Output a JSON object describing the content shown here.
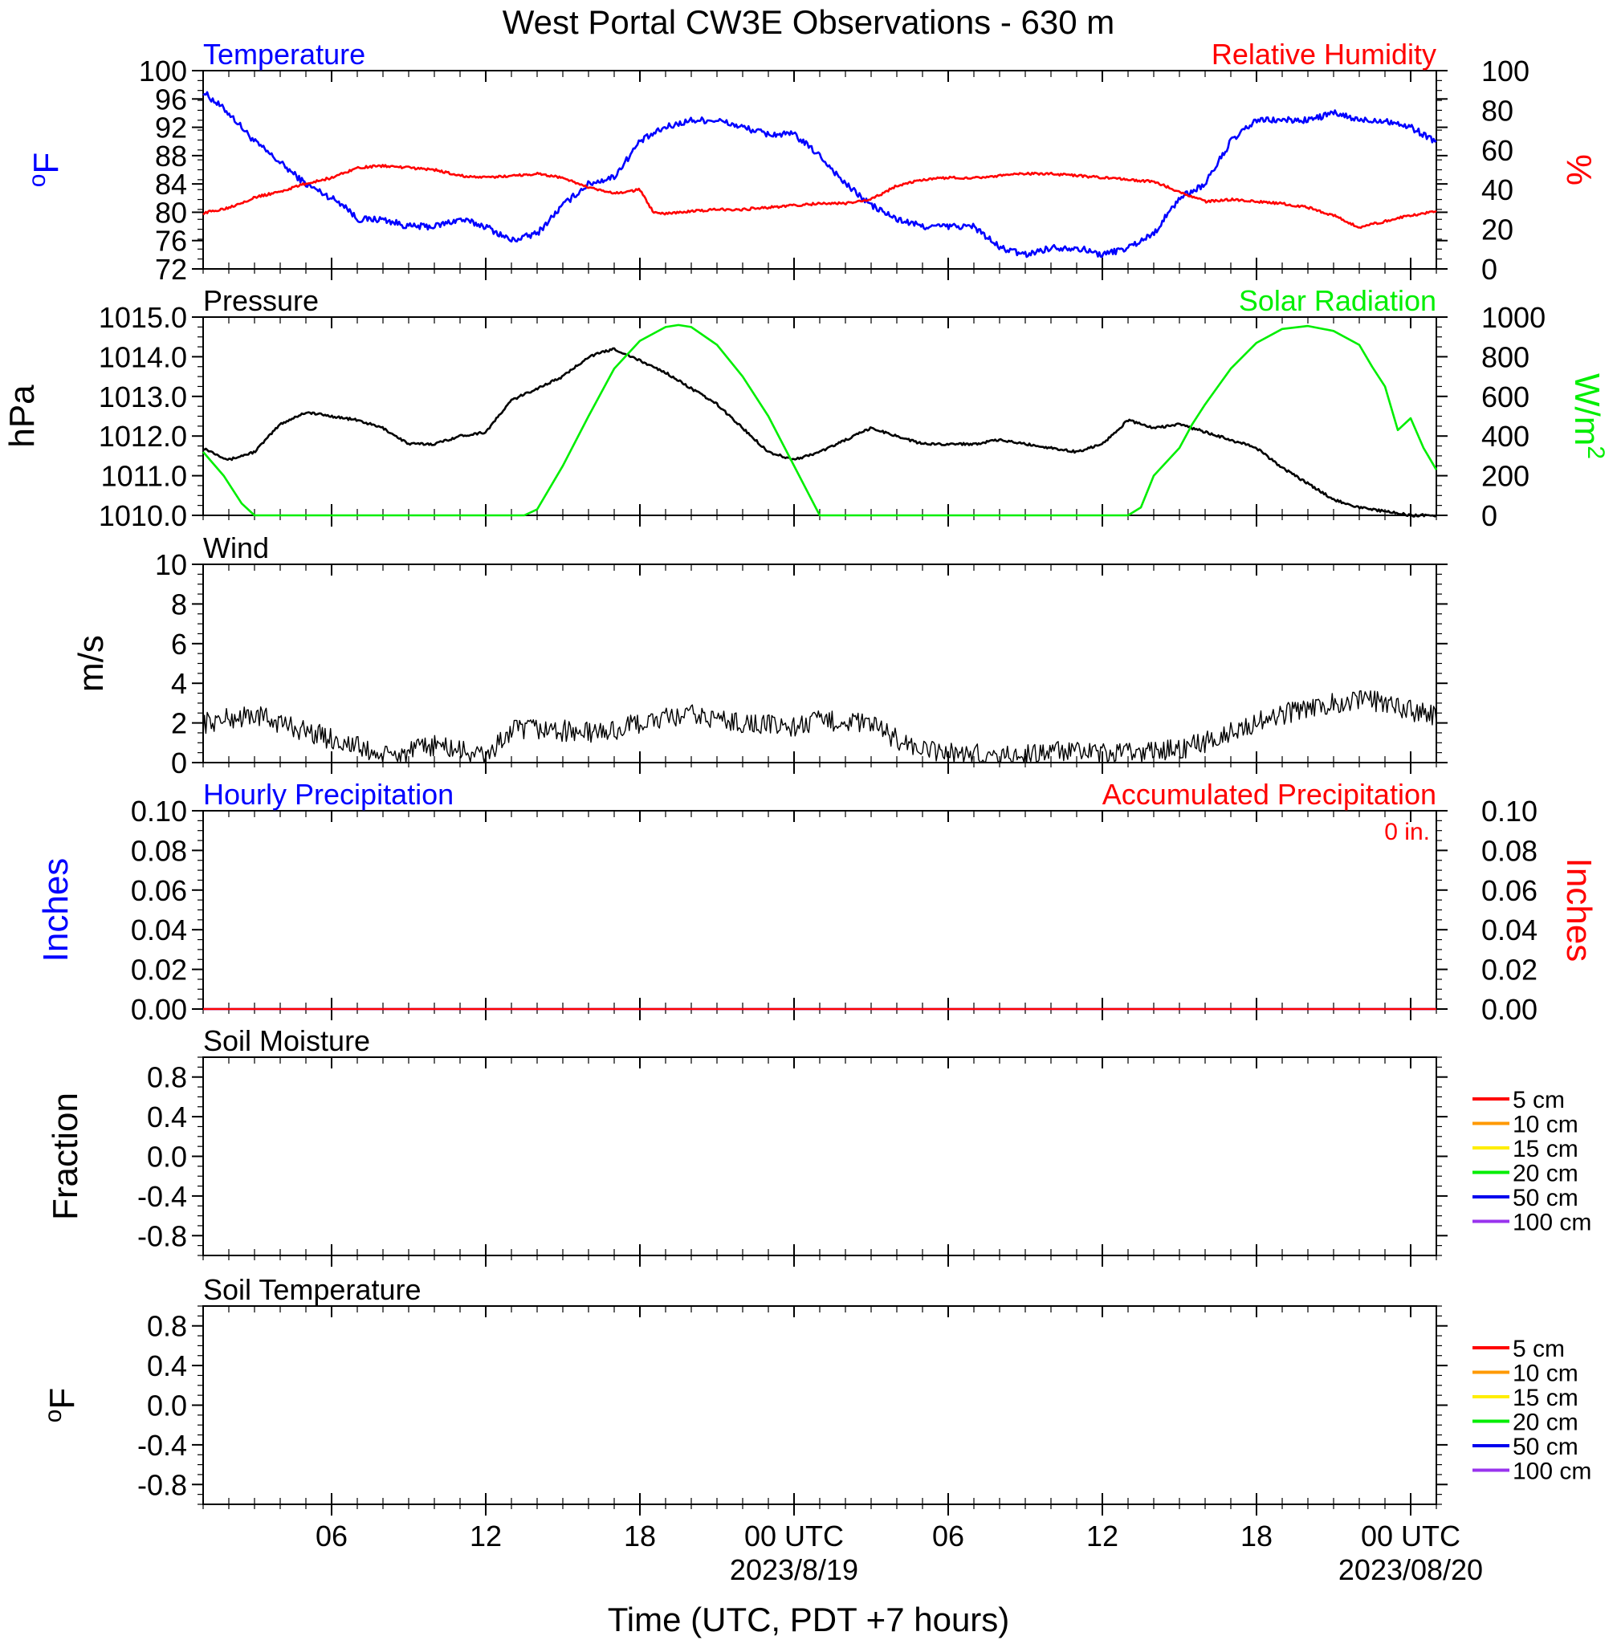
{
  "title": "West Portal CW3E Observations - 630 m",
  "xlabel": "Time (UTC, PDT +7 hours)",
  "colors": {
    "blue": "#0000ff",
    "red": "#ff0000",
    "green": "#00ee00",
    "black": "#000000"
  },
  "x_axis": {
    "unit": "hours from 2023-08-18 01 UTC",
    "range": [
      0,
      48
    ],
    "ticks": [
      {
        "x": 5,
        "label": "06",
        "date": ""
      },
      {
        "x": 11,
        "label": "12",
        "date": ""
      },
      {
        "x": 17,
        "label": "18",
        "date": ""
      },
      {
        "x": 23,
        "label": "00 UTC",
        "date": "2023/8/19"
      },
      {
        "x": 29,
        "label": "06",
        "date": ""
      },
      {
        "x": 35,
        "label": "12",
        "date": ""
      },
      {
        "x": 41,
        "label": "18",
        "date": ""
      },
      {
        "x": 47,
        "label": "00 UTC",
        "date": "2023/08/20"
      }
    ]
  },
  "chart_data": [
    {
      "type": "line",
      "left_title": "Temperature",
      "right_title": "Relative Humidity",
      "ylabel": "oF",
      "y2label": "%",
      "ylim": [
        72,
        100
      ],
      "y2lim": [
        0,
        100
      ],
      "yticks": [
        "100",
        "96",
        "92",
        "88",
        "84",
        "80",
        "76",
        "72"
      ],
      "y2ticks": [
        "100",
        "80",
        "60",
        "40",
        "20",
        "0"
      ],
      "series": [
        {
          "name": "Temperature",
          "color": "#0000ff",
          "axis": "left",
          "x": [
            0,
            1,
            2,
            3,
            4,
            5,
            5.5,
            6,
            7,
            8,
            9,
            10,
            11,
            12,
            13,
            14,
            15,
            16,
            17,
            18,
            19,
            20,
            21,
            22,
            23,
            24,
            25,
            26,
            27,
            28,
            29,
            30,
            31,
            32,
            33,
            34,
            35,
            36,
            37,
            38,
            39,
            40,
            41,
            42,
            43,
            44,
            45,
            46,
            47,
            48
          ],
          "y": [
            97,
            94,
            90,
            87,
            84,
            82,
            81,
            79,
            79,
            78,
            78,
            79,
            78,
            76,
            77,
            81,
            84,
            85,
            90,
            92,
            93,
            93,
            92,
            91,
            91,
            88,
            84,
            81,
            79,
            78,
            78,
            78,
            75,
            74,
            75,
            75,
            74,
            75,
            77,
            82,
            84,
            90,
            93,
            93,
            93,
            94,
            93,
            93,
            92,
            90
          ]
        },
        {
          "name": "Relative Humidity",
          "color": "#ff0000",
          "axis": "right",
          "x": [
            0,
            1,
            2,
            3,
            4,
            5,
            6,
            7,
            8,
            9,
            10,
            11,
            12,
            13,
            14,
            15,
            16,
            17,
            17.5,
            18,
            19,
            20,
            21,
            22,
            23,
            24,
            25,
            26,
            27,
            28,
            29,
            30,
            31,
            32,
            33,
            34,
            35,
            36,
            37,
            38,
            39,
            40,
            41,
            42,
            43,
            44,
            45,
            46,
            47,
            48
          ],
          "y": [
            28,
            31,
            36,
            39,
            43,
            46,
            51,
            52,
            51,
            50,
            47,
            46,
            47,
            48,
            46,
            41,
            38,
            40,
            29,
            28,
            29,
            30,
            30,
            31,
            32,
            33,
            33,
            35,
            42,
            45,
            46,
            46,
            47,
            48,
            48,
            47,
            46,
            45,
            44,
            39,
            34,
            35,
            34,
            33,
            31,
            27,
            21,
            24,
            27,
            29
          ]
        }
      ]
    },
    {
      "type": "line",
      "left_title": "Pressure",
      "right_title": "Solar Radiation",
      "ylabel": "hPa",
      "y2label": "W/m2",
      "ylim": [
        1010,
        1015
      ],
      "y2lim": [
        0,
        1000
      ],
      "yticks": [
        "1015.0",
        "1014.0",
        "1013.0",
        "1012.0",
        "1011.0",
        "1010.0"
      ],
      "y2ticks": [
        "1000",
        "800",
        "600",
        "400",
        "200",
        "0"
      ],
      "series": [
        {
          "name": "Pressure",
          "color": "#000000",
          "axis": "left",
          "x": [
            0,
            1,
            2,
            3,
            4,
            5,
            6,
            7,
            8,
            9,
            10,
            11,
            12,
            13,
            14,
            15,
            16,
            17,
            18,
            19,
            20,
            21,
            22,
            23,
            24,
            25,
            26,
            27,
            28,
            29,
            30,
            31,
            32,
            33,
            34,
            35,
            36,
            37,
            38,
            39,
            40,
            41,
            42,
            43,
            44,
            45,
            46,
            47,
            48
          ],
          "y": [
            1011.7,
            1011.4,
            1011.6,
            1012.3,
            1012.6,
            1012.5,
            1012.4,
            1012.2,
            1011.8,
            1011.8,
            1012.0,
            1012.1,
            1012.9,
            1013.2,
            1013.5,
            1014.0,
            1014.2,
            1013.9,
            1013.6,
            1013.2,
            1012.8,
            1012.2,
            1011.6,
            1011.4,
            1011.6,
            1011.9,
            1012.2,
            1012.0,
            1011.8,
            1011.8,
            1011.8,
            1011.9,
            1011.8,
            1011.7,
            1011.6,
            1011.8,
            1012.4,
            1012.2,
            1012.3,
            1012.1,
            1011.9,
            1011.7,
            1011.2,
            1010.8,
            1010.4,
            1010.2,
            1010.1,
            1010.0,
            1010.0
          ]
        },
        {
          "name": "Solar Radiation",
          "color": "#00ee00",
          "axis": "right",
          "x": [
            0,
            0.8,
            1.5,
            2,
            12.5,
            13,
            14,
            15,
            16,
            17,
            18,
            18.5,
            19,
            20,
            21,
            22,
            24,
            25,
            36,
            36.5,
            37,
            38,
            38.5,
            39,
            40,
            41,
            42,
            43,
            44,
            45,
            45.5,
            46,
            46.5,
            47,
            47.5,
            48
          ],
          "y": [
            320,
            200,
            60,
            0,
            0,
            30,
            250,
            500,
            740,
            880,
            950,
            960,
            950,
            860,
            700,
            500,
            0,
            0,
            0,
            40,
            200,
            340,
            460,
            560,
            740,
            870,
            940,
            955,
            930,
            860,
            750,
            650,
            430,
            490,
            340,
            230
          ]
        }
      ]
    },
    {
      "type": "line",
      "left_title": "Wind",
      "ylabel": "m/s",
      "ylim": [
        0,
        10
      ],
      "yticks": [
        "10",
        "8",
        "6",
        "4",
        "2",
        "0"
      ],
      "series": [
        {
          "name": "Wind",
          "color": "#000000",
          "axis": "left",
          "x": [
            0,
            1,
            2,
            3,
            4,
            5,
            6,
            7,
            8,
            9,
            10,
            11,
            12,
            13,
            14,
            15,
            16,
            17,
            18,
            19,
            20,
            21,
            22,
            23,
            24,
            25,
            26,
            27,
            28,
            29,
            30,
            31,
            32,
            33,
            34,
            35,
            36,
            37,
            38,
            39,
            40,
            41,
            42,
            43,
            44,
            45,
            46,
            47,
            48
          ],
          "y": [
            2.0,
            2.2,
            2.4,
            2.0,
            1.6,
            1.2,
            0.8,
            0.3,
            0.5,
            0.9,
            0.6,
            0.3,
            1.6,
            1.7,
            1.6,
            1.5,
            1.6,
            2.0,
            2.2,
            2.4,
            2.2,
            2.0,
            1.9,
            1.8,
            2.1,
            2.1,
            1.9,
            1.2,
            0.6,
            0.5,
            0.4,
            0.3,
            0.4,
            0.6,
            0.5,
            0.4,
            0.5,
            0.6,
            0.7,
            1.0,
            1.6,
            2.0,
            2.4,
            2.8,
            3.0,
            3.2,
            3.0,
            2.6,
            2.4
          ]
        }
      ]
    },
    {
      "type": "line",
      "left_title": "Hourly Precipitation",
      "right_title": "Accumulated Precipitation",
      "annotation": "0 in.",
      "ylabel": "Inches",
      "y2label": "Inches",
      "ylim": [
        0,
        0.1
      ],
      "y2lim": [
        0,
        0.1
      ],
      "yticks": [
        "0.10",
        "0.08",
        "0.06",
        "0.04",
        "0.02",
        "0.00"
      ],
      "y2ticks": [
        "0.10",
        "0.08",
        "0.06",
        "0.04",
        "0.02",
        "0.00"
      ],
      "series": [
        {
          "name": "Hourly Precipitation",
          "color": "#0000ff",
          "axis": "left",
          "x": [
            0,
            48
          ],
          "y": [
            0,
            0
          ]
        },
        {
          "name": "Accumulated Precipitation",
          "color": "#ff0000",
          "axis": "right",
          "x": [
            0,
            48
          ],
          "y": [
            0,
            0
          ]
        }
      ]
    },
    {
      "type": "line",
      "left_title": "Soil Moisture",
      "ylabel": "Fraction",
      "ylim": [
        -1,
        1
      ],
      "yticks": [
        "0.8",
        "0.4",
        "0.0",
        "-0.4",
        "-0.8"
      ],
      "legend": [
        {
          "name": "5 cm",
          "color": "#ff0000"
        },
        {
          "name": "10 cm",
          "color": "#ff9900"
        },
        {
          "name": "15 cm",
          "color": "#ffee00"
        },
        {
          "name": "20 cm",
          "color": "#00ee00"
        },
        {
          "name": "50 cm",
          "color": "#0000ee"
        },
        {
          "name": "100 cm",
          "color": "#9933ee"
        }
      ],
      "series": []
    },
    {
      "type": "line",
      "left_title": "Soil Temperature",
      "ylabel": "oF",
      "ylim": [
        -1,
        1
      ],
      "yticks": [
        "0.8",
        "0.4",
        "0.0",
        "-0.4",
        "-0.8"
      ],
      "legend": [
        {
          "name": "5 cm",
          "color": "#ff0000"
        },
        {
          "name": "10 cm",
          "color": "#ff9900"
        },
        {
          "name": "15 cm",
          "color": "#ffee00"
        },
        {
          "name": "20 cm",
          "color": "#00ee00"
        },
        {
          "name": "50 cm",
          "color": "#0000ee"
        },
        {
          "name": "100 cm",
          "color": "#9933ee"
        }
      ],
      "series": []
    }
  ]
}
